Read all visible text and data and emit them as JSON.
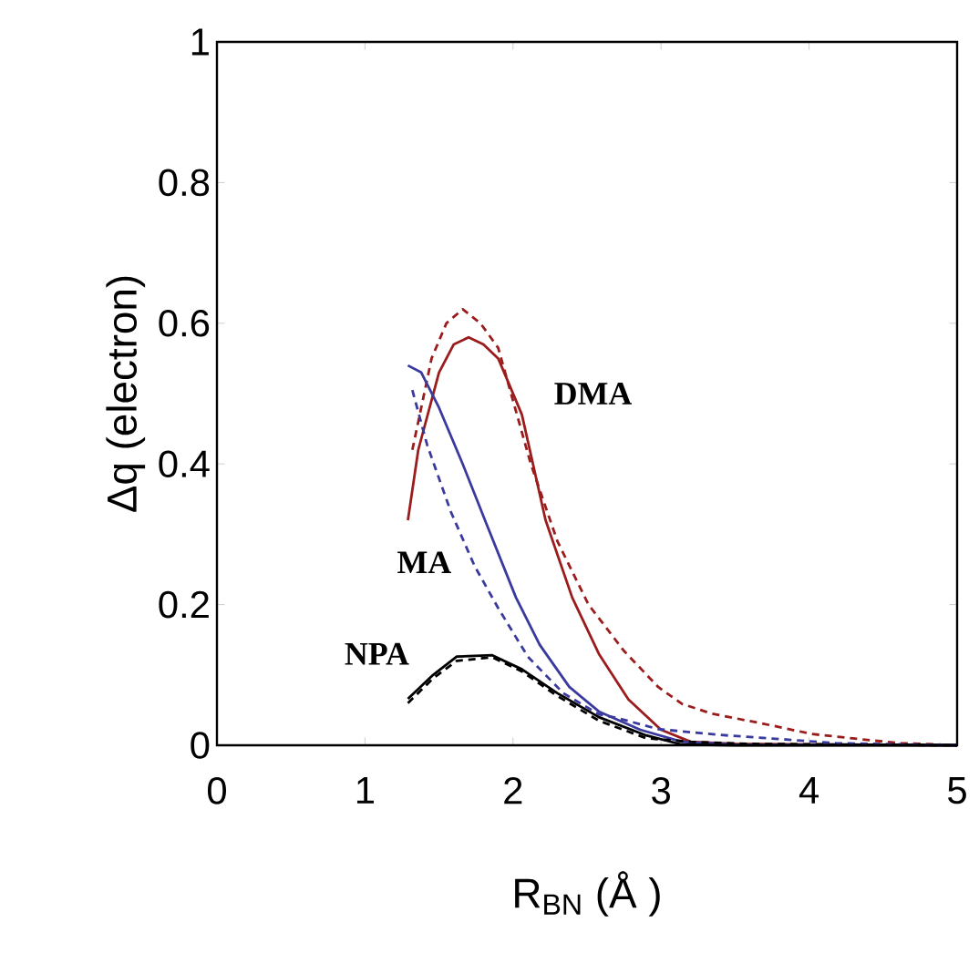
{
  "chart_data": {
    "type": "line",
    "xlabel": "R$_{BN}$ (Å )",
    "ylabel": "Δq (electron)",
    "xlim": [
      0,
      5
    ],
    "ylim": [
      0,
      1
    ],
    "xticks": [
      0,
      1,
      2,
      3,
      4,
      5
    ],
    "yticks": [
      0,
      0.2,
      0.4,
      0.6,
      0.8,
      1
    ],
    "grid": false,
    "marker": "none",
    "series": [
      {
        "color": "#9b1c1c",
        "line_style": "solid",
        "x": [
          1.29,
          1.36,
          1.5,
          1.6,
          1.7,
          1.8,
          1.9,
          2.06,
          2.22,
          2.4,
          2.58,
          2.78,
          3.0,
          3.2,
          3.5,
          4,
          5
        ],
        "values": [
          0.32,
          0.42,
          0.53,
          0.57,
          0.58,
          0.57,
          0.55,
          0.47,
          0.32,
          0.21,
          0.13,
          0.065,
          0.022,
          0.005,
          0.002,
          0.001,
          0
        ]
      },
      {
        "color": "#9b1c1c",
        "line_style": "dashed",
        "x": [
          1.32,
          1.45,
          1.55,
          1.66,
          1.78,
          1.9,
          1.98,
          2.12,
          2.3,
          2.51,
          2.75,
          2.98,
          3.14,
          3.34,
          3.66,
          4.02,
          4.42,
          4.62,
          5
        ],
        "values": [
          0.42,
          0.55,
          0.6,
          0.62,
          0.6,
          0.565,
          0.505,
          0.4,
          0.29,
          0.2,
          0.134,
          0.083,
          0.059,
          0.045,
          0.032,
          0.016,
          0.007,
          0.003,
          0
        ]
      },
      {
        "color": "#3a3a9e",
        "line_style": "solid",
        "x": [
          1.29,
          1.38,
          1.5,
          1.66,
          1.82,
          2.02,
          2.18,
          2.38,
          2.58,
          2.86,
          3.14,
          3.5,
          5
        ],
        "values": [
          0.54,
          0.53,
          0.48,
          0.4,
          0.315,
          0.21,
          0.143,
          0.083,
          0.048,
          0.022,
          0.005,
          0.001,
          0
        ]
      },
      {
        "color": "#3a3a9e",
        "line_style": "dashed",
        "x": [
          1.32,
          1.42,
          1.58,
          1.74,
          1.9,
          2.1,
          2.34,
          2.58,
          2.7,
          2.98,
          3.38,
          3.86,
          4.18,
          5
        ],
        "values": [
          0.505,
          0.427,
          0.332,
          0.255,
          0.195,
          0.126,
          0.074,
          0.044,
          0.039,
          0.023,
          0.015,
          0.008,
          0.003,
          0
        ]
      },
      {
        "color": "#000000",
        "line_style": "solid",
        "x": [
          1.29,
          1.46,
          1.62,
          1.86,
          2.06,
          2.3,
          2.58,
          2.9,
          3.14,
          3.5,
          5
        ],
        "values": [
          0.066,
          0.1,
          0.126,
          0.128,
          0.108,
          0.074,
          0.04,
          0.014,
          0.001,
          0,
          0
        ]
      },
      {
        "color": "#000000",
        "line_style": "dashed",
        "x": [
          1.29,
          1.46,
          1.62,
          1.86,
          2.06,
          2.3,
          2.58,
          2.9,
          3.2,
          3.6,
          5
        ],
        "values": [
          0.06,
          0.095,
          0.12,
          0.125,
          0.105,
          0.07,
          0.035,
          0.01,
          0.005,
          0.002,
          0
        ]
      }
    ],
    "annotations": [
      "DMA",
      "MA",
      "NPA"
    ]
  }
}
